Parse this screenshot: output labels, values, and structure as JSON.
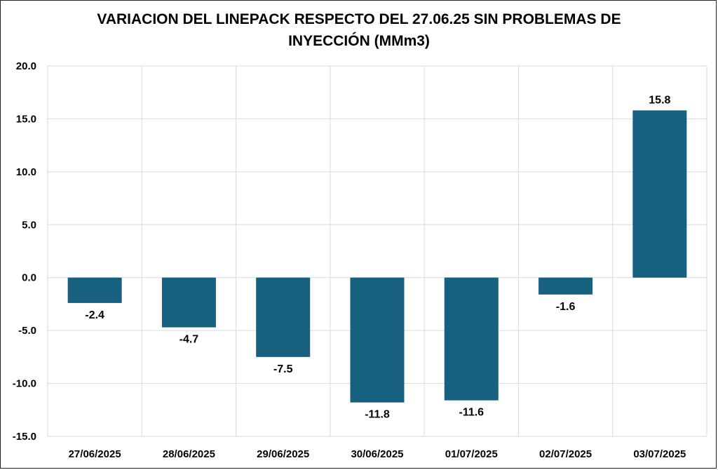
{
  "chart_data": {
    "type": "bar",
    "title_line1": "VARIACION DEL LINEPACK RESPECTO DEL 27.06.25 SIN PROBLEMAS DE",
    "title_line2": "INYECCIÓN (MMm3)",
    "categories": [
      "27/06/2025",
      "28/06/2025",
      "29/06/2025",
      "30/06/2025",
      "01/07/2025",
      "02/07/2025",
      "03/07/2025"
    ],
    "values": [
      -2.4,
      -4.7,
      -7.5,
      -11.8,
      -11.6,
      -1.6,
      15.8
    ],
    "data_labels": [
      "-2.4",
      "-4.7",
      "-7.5",
      "-11.8",
      "-11.6",
      "-1.6",
      "15.8"
    ],
    "y_ticks": [
      "20.0",
      "15.0",
      "10.0",
      "5.0",
      "0.0",
      "-5.0",
      "-10.0",
      "-15.0"
    ],
    "ylim": [
      -15,
      20
    ],
    "grid": true,
    "bar_color": "#17607F",
    "grid_color": "#D9D9D9"
  }
}
